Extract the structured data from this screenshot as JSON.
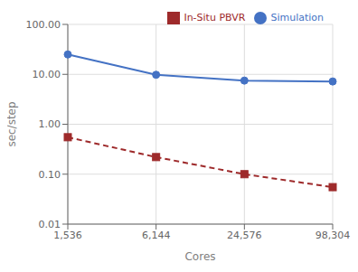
{
  "chart_data": {
    "type": "line",
    "categories": [
      "1,536",
      "6,144",
      "24,576",
      "98,304"
    ],
    "series": [
      {
        "name": "Simulation",
        "color": "#4472C4",
        "values": [
          25.0,
          9.8,
          7.5,
          7.2
        ],
        "marker": "circle",
        "line_style": "solid"
      },
      {
        "name": "In-Situ PBVR",
        "color": "#9E2A2B",
        "values": [
          0.55,
          0.22,
          0.1,
          0.055
        ],
        "marker": "square",
        "line_style": "dashed"
      }
    ],
    "xlabel": "Cores",
    "ylabel": "sec/step",
    "ylim": [
      0.01,
      100.0
    ],
    "yticks": [
      0.01,
      {
        "value": 0.1,
        "label": "0.10"
      },
      {
        "value": 1.0,
        "label": "1.00"
      },
      {
        "value": 10.0,
        "label": "10.00"
      },
      {
        "value": 100.0,
        "label": "100.00"
      }
    ],
    "log": "y",
    "grid": true,
    "legend": "upper right"
  }
}
